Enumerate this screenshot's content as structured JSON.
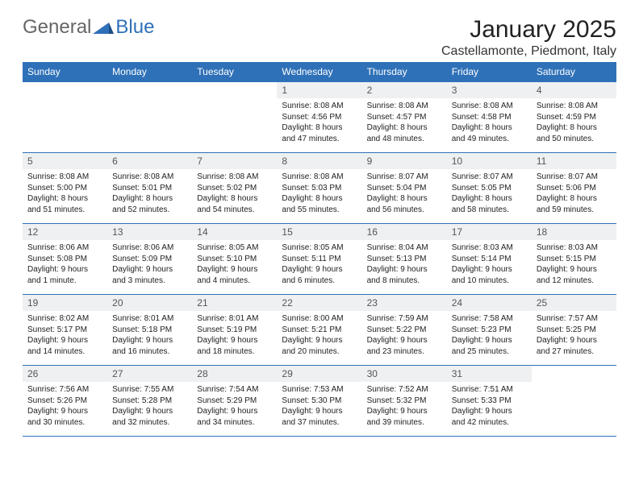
{
  "logo": {
    "word1": "General",
    "word2": "Blue"
  },
  "title": "January 2025",
  "location": "Castellamonte, Piedmont, Italy",
  "header_bg": "#2f71b8",
  "header_fg": "#ffffff",
  "daynum_bg": "#eef0f2",
  "border_color": "#2f71b8",
  "weekdays": [
    "Sunday",
    "Monday",
    "Tuesday",
    "Wednesday",
    "Thursday",
    "Friday",
    "Saturday"
  ],
  "weeks": [
    [
      null,
      null,
      null,
      {
        "num": "1",
        "sunrise": "8:08 AM",
        "sunset": "4:56 PM",
        "day_h": "8",
        "day_m": "47 minutes"
      },
      {
        "num": "2",
        "sunrise": "8:08 AM",
        "sunset": "4:57 PM",
        "day_h": "8",
        "day_m": "48 minutes"
      },
      {
        "num": "3",
        "sunrise": "8:08 AM",
        "sunset": "4:58 PM",
        "day_h": "8",
        "day_m": "49 minutes"
      },
      {
        "num": "4",
        "sunrise": "8:08 AM",
        "sunset": "4:59 PM",
        "day_h": "8",
        "day_m": "50 minutes"
      }
    ],
    [
      {
        "num": "5",
        "sunrise": "8:08 AM",
        "sunset": "5:00 PM",
        "day_h": "8",
        "day_m": "51 minutes"
      },
      {
        "num": "6",
        "sunrise": "8:08 AM",
        "sunset": "5:01 PM",
        "day_h": "8",
        "day_m": "52 minutes"
      },
      {
        "num": "7",
        "sunrise": "8:08 AM",
        "sunset": "5:02 PM",
        "day_h": "8",
        "day_m": "54 minutes"
      },
      {
        "num": "8",
        "sunrise": "8:08 AM",
        "sunset": "5:03 PM",
        "day_h": "8",
        "day_m": "55 minutes"
      },
      {
        "num": "9",
        "sunrise": "8:07 AM",
        "sunset": "5:04 PM",
        "day_h": "8",
        "day_m": "56 minutes"
      },
      {
        "num": "10",
        "sunrise": "8:07 AM",
        "sunset": "5:05 PM",
        "day_h": "8",
        "day_m": "58 minutes"
      },
      {
        "num": "11",
        "sunrise": "8:07 AM",
        "sunset": "5:06 PM",
        "day_h": "8",
        "day_m": "59 minutes"
      }
    ],
    [
      {
        "num": "12",
        "sunrise": "8:06 AM",
        "sunset": "5:08 PM",
        "day_h": "9",
        "day_m": "1 minute"
      },
      {
        "num": "13",
        "sunrise": "8:06 AM",
        "sunset": "5:09 PM",
        "day_h": "9",
        "day_m": "3 minutes"
      },
      {
        "num": "14",
        "sunrise": "8:05 AM",
        "sunset": "5:10 PM",
        "day_h": "9",
        "day_m": "4 minutes"
      },
      {
        "num": "15",
        "sunrise": "8:05 AM",
        "sunset": "5:11 PM",
        "day_h": "9",
        "day_m": "6 minutes"
      },
      {
        "num": "16",
        "sunrise": "8:04 AM",
        "sunset": "5:13 PM",
        "day_h": "9",
        "day_m": "8 minutes"
      },
      {
        "num": "17",
        "sunrise": "8:03 AM",
        "sunset": "5:14 PM",
        "day_h": "9",
        "day_m": "10 minutes"
      },
      {
        "num": "18",
        "sunrise": "8:03 AM",
        "sunset": "5:15 PM",
        "day_h": "9",
        "day_m": "12 minutes"
      }
    ],
    [
      {
        "num": "19",
        "sunrise": "8:02 AM",
        "sunset": "5:17 PM",
        "day_h": "9",
        "day_m": "14 minutes"
      },
      {
        "num": "20",
        "sunrise": "8:01 AM",
        "sunset": "5:18 PM",
        "day_h": "9",
        "day_m": "16 minutes"
      },
      {
        "num": "21",
        "sunrise": "8:01 AM",
        "sunset": "5:19 PM",
        "day_h": "9",
        "day_m": "18 minutes"
      },
      {
        "num": "22",
        "sunrise": "8:00 AM",
        "sunset": "5:21 PM",
        "day_h": "9",
        "day_m": "20 minutes"
      },
      {
        "num": "23",
        "sunrise": "7:59 AM",
        "sunset": "5:22 PM",
        "day_h": "9",
        "day_m": "23 minutes"
      },
      {
        "num": "24",
        "sunrise": "7:58 AM",
        "sunset": "5:23 PM",
        "day_h": "9",
        "day_m": "25 minutes"
      },
      {
        "num": "25",
        "sunrise": "7:57 AM",
        "sunset": "5:25 PM",
        "day_h": "9",
        "day_m": "27 minutes"
      }
    ],
    [
      {
        "num": "26",
        "sunrise": "7:56 AM",
        "sunset": "5:26 PM",
        "day_h": "9",
        "day_m": "30 minutes"
      },
      {
        "num": "27",
        "sunrise": "7:55 AM",
        "sunset": "5:28 PM",
        "day_h": "9",
        "day_m": "32 minutes"
      },
      {
        "num": "28",
        "sunrise": "7:54 AM",
        "sunset": "5:29 PM",
        "day_h": "9",
        "day_m": "34 minutes"
      },
      {
        "num": "29",
        "sunrise": "7:53 AM",
        "sunset": "5:30 PM",
        "day_h": "9",
        "day_m": "37 minutes"
      },
      {
        "num": "30",
        "sunrise": "7:52 AM",
        "sunset": "5:32 PM",
        "day_h": "9",
        "day_m": "39 minutes"
      },
      {
        "num": "31",
        "sunrise": "7:51 AM",
        "sunset": "5:33 PM",
        "day_h": "9",
        "day_m": "42 minutes"
      },
      null
    ]
  ],
  "labels": {
    "sunrise": "Sunrise:",
    "sunset": "Sunset:",
    "daylight": "Daylight:",
    "hours": "hours",
    "and": "and"
  }
}
